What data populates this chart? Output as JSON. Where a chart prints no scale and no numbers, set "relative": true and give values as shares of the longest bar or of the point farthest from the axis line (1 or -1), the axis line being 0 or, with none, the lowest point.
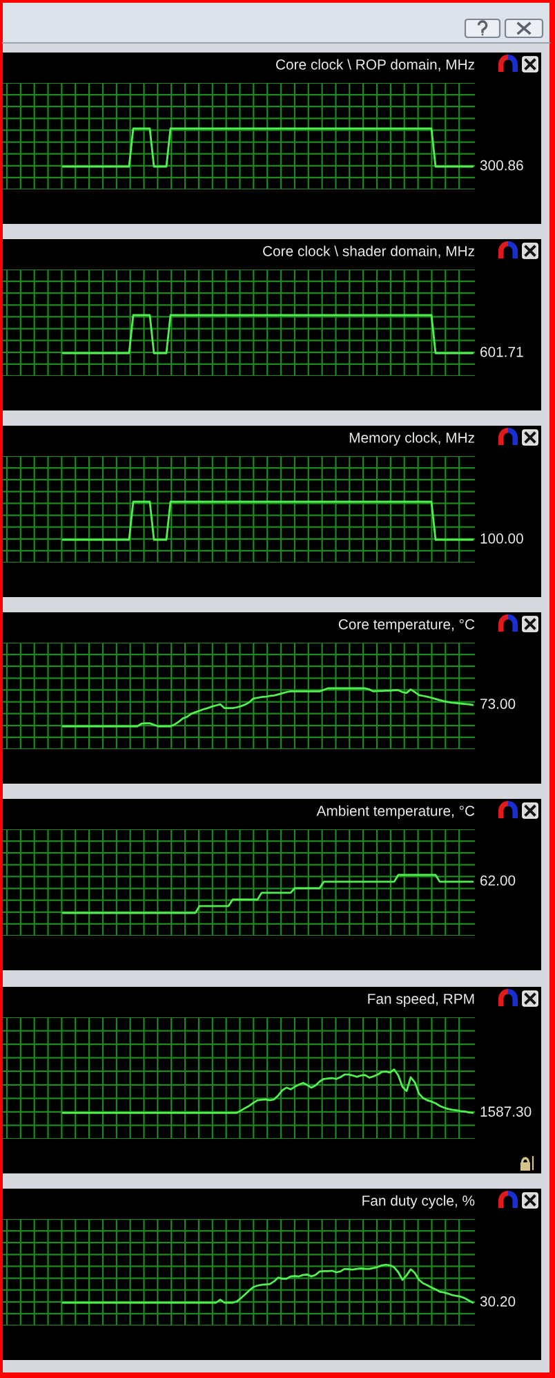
{
  "chart_data": [
    {
      "type": "line",
      "title": "Core clock \\ ROP domain, MHz",
      "relative": true,
      "grid": true,
      "annotations": [
        "300.86"
      ],
      "categories": [
        null,
        null,
        null,
        null,
        null,
        null,
        null,
        null,
        null,
        null,
        null,
        null,
        null,
        null,
        null,
        null,
        null,
        null,
        null,
        null,
        null,
        null,
        null,
        null,
        null,
        null,
        null,
        null,
        null,
        null,
        null,
        null,
        null,
        null,
        null,
        null,
        null,
        null,
        null,
        null,
        null,
        null,
        null,
        null,
        null,
        null,
        null,
        null,
        null,
        null,
        null,
        null,
        null,
        null,
        null,
        null,
        null,
        null,
        null,
        null,
        null,
        null,
        null,
        null,
        null,
        null,
        null,
        null,
        null,
        null,
        null,
        null,
        null,
        null,
        null,
        null,
        null,
        null,
        null,
        null,
        null,
        null,
        null,
        null,
        null,
        null,
        null,
        null,
        null,
        null,
        null,
        null,
        null,
        null,
        null,
        null,
        null,
        null,
        null,
        null,
        null,
        null,
        null,
        null,
        null,
        null,
        null,
        null,
        null,
        null,
        null,
        null,
        null,
        null
      ],
      "series": [
        {
          "color": "#50f050",
          "values": [
            null,
            null,
            null,
            null,
            null,
            null,
            null,
            null,
            null,
            null,
            null,
            null,
            null,
            null,
            0,
            0,
            0,
            0,
            0,
            0,
            0,
            0,
            0,
            0,
            0,
            0,
            0,
            0,
            0,
            0,
            0,
            1,
            1,
            1,
            1,
            1,
            0,
            0,
            0,
            0,
            1,
            1,
            1,
            1,
            1,
            1,
            1,
            1,
            1,
            1,
            1,
            1,
            1,
            1,
            1,
            1,
            1,
            1,
            1,
            1,
            1,
            1,
            1,
            1,
            1,
            1,
            1,
            1,
            1,
            1,
            1,
            1,
            1,
            1,
            1,
            1,
            1,
            1,
            1,
            1,
            1,
            1,
            1,
            1,
            1,
            1,
            1,
            1,
            1,
            1,
            1,
            1,
            1,
            1,
            1,
            1,
            1,
            1,
            1,
            1,
            1,
            1,
            1,
            1,
            0,
            0,
            0,
            0,
            0,
            0,
            0,
            0,
            0,
            0
          ]
        }
      ]
    },
    {
      "type": "line",
      "title": "Core clock \\ shader domain, MHz",
      "relative": true,
      "grid": true,
      "annotations": [
        "601.71"
      ],
      "categories": [
        null,
        null,
        null,
        null,
        null,
        null,
        null,
        null,
        null,
        null,
        null,
        null,
        null,
        null,
        null,
        null,
        null,
        null,
        null,
        null,
        null,
        null,
        null,
        null,
        null,
        null,
        null,
        null,
        null,
        null,
        null,
        null,
        null,
        null,
        null,
        null,
        null,
        null,
        null,
        null,
        null,
        null,
        null,
        null,
        null,
        null,
        null,
        null,
        null,
        null,
        null,
        null,
        null,
        null,
        null,
        null,
        null,
        null,
        null,
        null,
        null,
        null,
        null,
        null,
        null,
        null,
        null,
        null,
        null,
        null,
        null,
        null,
        null,
        null,
        null,
        null,
        null,
        null,
        null,
        null,
        null,
        null,
        null,
        null,
        null,
        null,
        null,
        null,
        null,
        null,
        null,
        null,
        null,
        null,
        null,
        null,
        null,
        null,
        null,
        null,
        null,
        null,
        null,
        null,
        null,
        null,
        null,
        null,
        null,
        null,
        null,
        null,
        null,
        null
      ],
      "series": [
        {
          "color": "#50f050",
          "values": [
            null,
            null,
            null,
            null,
            null,
            null,
            null,
            null,
            null,
            null,
            null,
            null,
            null,
            null,
            0,
            0,
            0,
            0,
            0,
            0,
            0,
            0,
            0,
            0,
            0,
            0,
            0,
            0,
            0,
            0,
            0,
            1,
            1,
            1,
            1,
            1,
            0,
            0,
            0,
            0,
            1,
            1,
            1,
            1,
            1,
            1,
            1,
            1,
            1,
            1,
            1,
            1,
            1,
            1,
            1,
            1,
            1,
            1,
            1,
            1,
            1,
            1,
            1,
            1,
            1,
            1,
            1,
            1,
            1,
            1,
            1,
            1,
            1,
            1,
            1,
            1,
            1,
            1,
            1,
            1,
            1,
            1,
            1,
            1,
            1,
            1,
            1,
            1,
            1,
            1,
            1,
            1,
            1,
            1,
            1,
            1,
            1,
            1,
            1,
            1,
            1,
            1,
            1,
            1,
            0,
            0,
            0,
            0,
            0,
            0,
            0,
            0,
            0,
            0
          ]
        }
      ]
    },
    {
      "type": "line",
      "title": "Memory clock, MHz",
      "relative": true,
      "grid": true,
      "annotations": [
        "100.00"
      ],
      "categories": [
        null,
        null,
        null,
        null,
        null,
        null,
        null,
        null,
        null,
        null,
        null,
        null,
        null,
        null,
        null,
        null,
        null,
        null,
        null,
        null,
        null,
        null,
        null,
        null,
        null,
        null,
        null,
        null,
        null,
        null,
        null,
        null,
        null,
        null,
        null,
        null,
        null,
        null,
        null,
        null,
        null,
        null,
        null,
        null,
        null,
        null,
        null,
        null,
        null,
        null,
        null,
        null,
        null,
        null,
        null,
        null,
        null,
        null,
        null,
        null,
        null,
        null,
        null,
        null,
        null,
        null,
        null,
        null,
        null,
        null,
        null,
        null,
        null,
        null,
        null,
        null,
        null,
        null,
        null,
        null,
        null,
        null,
        null,
        null,
        null,
        null,
        null,
        null,
        null,
        null,
        null,
        null,
        null,
        null,
        null,
        null,
        null,
        null,
        null,
        null,
        null,
        null,
        null,
        null,
        null,
        null,
        null,
        null,
        null,
        null,
        null,
        null,
        null,
        null
      ],
      "series": [
        {
          "color": "#50f050",
          "values": [
            null,
            null,
            null,
            null,
            null,
            null,
            null,
            null,
            null,
            null,
            null,
            null,
            null,
            null,
            0,
            0,
            0,
            0,
            0,
            0,
            0,
            0,
            0,
            0,
            0,
            0,
            0,
            0,
            0,
            0,
            0,
            1,
            1,
            1,
            1,
            1,
            0,
            0,
            0,
            0,
            1,
            1,
            1,
            1,
            1,
            1,
            1,
            1,
            1,
            1,
            1,
            1,
            1,
            1,
            1,
            1,
            1,
            1,
            1,
            1,
            1,
            1,
            1,
            1,
            1,
            1,
            1,
            1,
            1,
            1,
            1,
            1,
            1,
            1,
            1,
            1,
            1,
            1,
            1,
            1,
            1,
            1,
            1,
            1,
            1,
            1,
            1,
            1,
            1,
            1,
            1,
            1,
            1,
            1,
            1,
            1,
            1,
            1,
            1,
            1,
            1,
            1,
            1,
            1,
            0,
            0,
            0,
            0,
            0,
            0,
            0,
            0,
            0,
            0
          ]
        }
      ]
    },
    {
      "type": "line",
      "title": "Core temperature, °C",
      "relative": true,
      "grid": true,
      "annotations": [
        "73.00"
      ],
      "categories": [
        null,
        null,
        null,
        null,
        null,
        null,
        null,
        null,
        null,
        null,
        null,
        null,
        null,
        null,
        null,
        null,
        null,
        null,
        null,
        null,
        null,
        null,
        null,
        null,
        null,
        null,
        null,
        null,
        null,
        null,
        null,
        null,
        null,
        null,
        null,
        null,
        null,
        null,
        null,
        null,
        null,
        null,
        null,
        null,
        null,
        null,
        null,
        null,
        null,
        null,
        null,
        null,
        null,
        null,
        null,
        null,
        null,
        null,
        null,
        null,
        null,
        null,
        null,
        null,
        null,
        null,
        null,
        null,
        null,
        null,
        null,
        null,
        null,
        null,
        null,
        null,
        null,
        null,
        null,
        null,
        null,
        null,
        null,
        null,
        null,
        null,
        null,
        null,
        null,
        null,
        null,
        null,
        null,
        null,
        null,
        null,
        null,
        null,
        null,
        null,
        null,
        null,
        null,
        null,
        null,
        null,
        null,
        null,
        null,
        null,
        null,
        null,
        null,
        null
      ],
      "series": [
        {
          "color": "#50f050",
          "values": [
            null,
            null,
            null,
            null,
            null,
            null,
            null,
            null,
            null,
            null,
            null,
            null,
            null,
            null,
            0,
            0,
            0,
            0,
            0,
            0,
            0,
            0,
            0,
            0,
            0,
            0,
            0,
            0,
            0,
            0,
            0,
            0,
            0,
            0.07,
            0.08,
            0.08,
            0.04,
            0,
            0,
            0,
            0,
            0.05,
            0.12,
            0.21,
            0.25,
            0.33,
            0.37,
            0.41,
            0.45,
            0.48,
            0.52,
            0.55,
            0.58,
            0.48,
            0.48,
            0.48,
            0.5,
            0.53,
            0.57,
            0.63,
            0.73,
            0.75,
            0.77,
            0.78,
            0.8,
            0.81,
            0.84,
            0.87,
            0.9,
            0.92,
            0.92,
            0.92,
            0.92,
            0.92,
            0.92,
            0.92,
            0.92,
            0.96,
            1,
            1,
            1,
            1,
            1,
            1,
            1,
            1,
            1,
            1,
            0.97,
            0.92,
            0.93,
            0.93,
            0.94,
            0.94,
            0.95,
            0.95,
            0.9,
            0.88,
            0.97,
            0.9,
            0.82,
            0.8,
            0.78,
            0.75,
            0.72,
            0.69,
            0.66,
            0.64,
            0.62,
            0.61,
            0.6,
            0.59,
            0.58,
            0.56
          ]
        }
      ]
    },
    {
      "type": "line",
      "title": "Ambient temperature, °C",
      "relative": true,
      "grid": true,
      "annotations": [
        "62.00"
      ],
      "categories": [
        null,
        null,
        null,
        null,
        null,
        null,
        null,
        null,
        null,
        null,
        null,
        null,
        null,
        null,
        null,
        null,
        null,
        null,
        null,
        null,
        null,
        null,
        null,
        null,
        null,
        null,
        null,
        null,
        null,
        null,
        null,
        null,
        null,
        null,
        null,
        null,
        null,
        null,
        null,
        null,
        null,
        null,
        null,
        null,
        null,
        null,
        null,
        null,
        null,
        null,
        null,
        null,
        null,
        null,
        null,
        null,
        null,
        null,
        null,
        null,
        null,
        null,
        null,
        null,
        null,
        null,
        null,
        null,
        null,
        null,
        null,
        null,
        null,
        null,
        null,
        null,
        null,
        null,
        null,
        null,
        null,
        null,
        null,
        null,
        null,
        null,
        null,
        null,
        null,
        null,
        null,
        null,
        null,
        null,
        null,
        null,
        null,
        null,
        null,
        null,
        null,
        null,
        null,
        null,
        null,
        null,
        null,
        null,
        null,
        null,
        null,
        null,
        null,
        null
      ],
      "series": [
        {
          "color": "#50f050",
          "values": [
            null,
            null,
            null,
            null,
            null,
            null,
            null,
            null,
            null,
            null,
            null,
            null,
            null,
            null,
            0,
            0,
            0,
            0,
            0,
            0,
            0,
            0,
            0,
            0,
            0,
            0,
            0,
            0,
            0,
            0,
            0,
            0,
            0,
            0,
            0,
            0,
            0,
            0,
            0,
            0,
            0,
            0,
            0,
            0,
            0,
            0,
            0,
            0.18,
            0.18,
            0.18,
            0.18,
            0.18,
            0.18,
            0.18,
            0.18,
            0.35,
            0.35,
            0.35,
            0.35,
            0.35,
            0.35,
            0.35,
            0.53,
            0.53,
            0.53,
            0.53,
            0.53,
            0.53,
            0.53,
            0.53,
            0.65,
            0.65,
            0.65,
            0.65,
            0.65,
            0.65,
            0.65,
            0.82,
            0.82,
            0.82,
            0.82,
            0.82,
            0.82,
            0.82,
            0.82,
            0.82,
            0.82,
            0.82,
            0.82,
            0.82,
            0.82,
            0.82,
            0.82,
            0.82,
            0.82,
            1,
            1,
            1,
            1,
            1,
            1,
            1,
            1,
            1,
            1,
            0.82,
            0.82,
            0.82,
            0.82,
            0.82,
            0.82,
            0.82,
            0.82,
            0.82
          ]
        }
      ]
    },
    {
      "type": "line",
      "title": "Fan speed, RPM",
      "relative": true,
      "grid": true,
      "annotations": [
        "1587.30"
      ],
      "categories": [
        null,
        null,
        null,
        null,
        null,
        null,
        null,
        null,
        null,
        null,
        null,
        null,
        null,
        null,
        null,
        null,
        null,
        null,
        null,
        null,
        null,
        null,
        null,
        null,
        null,
        null,
        null,
        null,
        null,
        null,
        null,
        null,
        null,
        null,
        null,
        null,
        null,
        null,
        null,
        null,
        null,
        null,
        null,
        null,
        null,
        null,
        null,
        null,
        null,
        null,
        null,
        null,
        null,
        null,
        null,
        null,
        null,
        null,
        null,
        null,
        null,
        null,
        null,
        null,
        null,
        null,
        null,
        null,
        null,
        null,
        null,
        null,
        null,
        null,
        null,
        null,
        null,
        null,
        null,
        null,
        null,
        null,
        null,
        null,
        null,
        null,
        null,
        null,
        null,
        null,
        null,
        null,
        null,
        null,
        null,
        null,
        null,
        null,
        null,
        null,
        null,
        null,
        null,
        null,
        null,
        null,
        null,
        null,
        null,
        null,
        null,
        null,
        null,
        null
      ],
      "series": [
        {
          "color": "#50f050",
          "values": [
            null,
            null,
            null,
            null,
            null,
            null,
            null,
            null,
            null,
            null,
            null,
            null,
            null,
            null,
            0,
            0,
            0,
            0,
            0,
            0,
            0,
            0,
            0,
            0,
            0,
            0,
            0,
            0,
            0,
            0,
            0,
            0,
            0,
            0,
            0,
            0,
            0,
            0,
            0,
            0,
            0,
            0,
            0,
            0,
            0,
            0,
            0,
            0,
            0,
            0,
            0,
            0,
            0,
            0,
            0,
            0,
            0,
            0.05,
            0.11,
            0.16,
            0.23,
            0.29,
            0.3,
            0.31,
            0.29,
            0.31,
            0.4,
            0.52,
            0.58,
            0.54,
            0.6,
            0.65,
            0.69,
            0.64,
            0.58,
            0.63,
            0.72,
            0.78,
            0.79,
            0.8,
            0.78,
            0.82,
            0.88,
            0.88,
            0.86,
            0.83,
            0.86,
            0.87,
            0.81,
            0.84,
            0.88,
            0.94,
            0.95,
            0.93,
            1,
            0.86,
            0.6,
            0.5,
            0.82,
            0.7,
            0.44,
            0.34,
            0.29,
            0.26,
            0.22,
            0.16,
            0.12,
            0.09,
            0.07,
            0.06,
            0.04,
            0.03,
            0.01,
            0
          ]
        }
      ]
    },
    {
      "type": "line",
      "title": "Fan duty cycle, %",
      "relative": true,
      "grid": true,
      "annotations": [
        "30.20"
      ],
      "categories": [
        null,
        null,
        null,
        null,
        null,
        null,
        null,
        null,
        null,
        null,
        null,
        null,
        null,
        null,
        null,
        null,
        null,
        null,
        null,
        null,
        null,
        null,
        null,
        null,
        null,
        null,
        null,
        null,
        null,
        null,
        null,
        null,
        null,
        null,
        null,
        null,
        null,
        null,
        null,
        null,
        null,
        null,
        null,
        null,
        null,
        null,
        null,
        null,
        null,
        null,
        null,
        null,
        null,
        null,
        null,
        null,
        null,
        null,
        null,
        null,
        null,
        null,
        null,
        null,
        null,
        null,
        null,
        null,
        null,
        null,
        null,
        null,
        null,
        null,
        null,
        null,
        null,
        null,
        null,
        null,
        null,
        null,
        null,
        null,
        null,
        null,
        null,
        null,
        null,
        null,
        null,
        null,
        null,
        null,
        null,
        null,
        null,
        null,
        null,
        null,
        null,
        null,
        null,
        null,
        null,
        null,
        null,
        null,
        null,
        null,
        null,
        null,
        null,
        null
      ],
      "series": [
        {
          "color": "#50f050",
          "values": [
            null,
            null,
            null,
            null,
            null,
            null,
            null,
            null,
            null,
            null,
            null,
            null,
            null,
            null,
            0,
            0,
            0,
            0,
            0,
            0,
            0,
            0,
            0,
            0,
            0,
            0,
            0,
            0,
            0,
            0,
            0,
            0,
            0,
            0,
            0,
            0,
            0,
            0,
            0,
            0,
            0,
            0,
            0,
            0,
            0,
            0,
            0,
            0,
            0,
            0,
            0,
            0,
            0.08,
            0,
            0,
            0,
            0.03,
            0.12,
            0.22,
            0.32,
            0.41,
            0.45,
            0.47,
            0.48,
            0.49,
            0.56,
            0.66,
            0.63,
            0.63,
            0.69,
            0.7,
            0.69,
            0.73,
            0.74,
            0.69,
            0.73,
            0.82,
            0.83,
            0.83,
            0.84,
            0.8,
            0.82,
            0.89,
            0.88,
            0.87,
            0.89,
            0.9,
            0.89,
            0.89,
            0.91,
            0.94,
            0.98,
            1,
            0.98,
            0.93,
            0.8,
            0.6,
            0.72,
            0.88,
            0.78,
            0.6,
            0.51,
            0.46,
            0.4,
            0.35,
            0.29,
            0.27,
            0.24,
            0.2,
            0.18,
            0.16,
            0.12,
            0.06,
            0
          ]
        }
      ]
    }
  ]
}
